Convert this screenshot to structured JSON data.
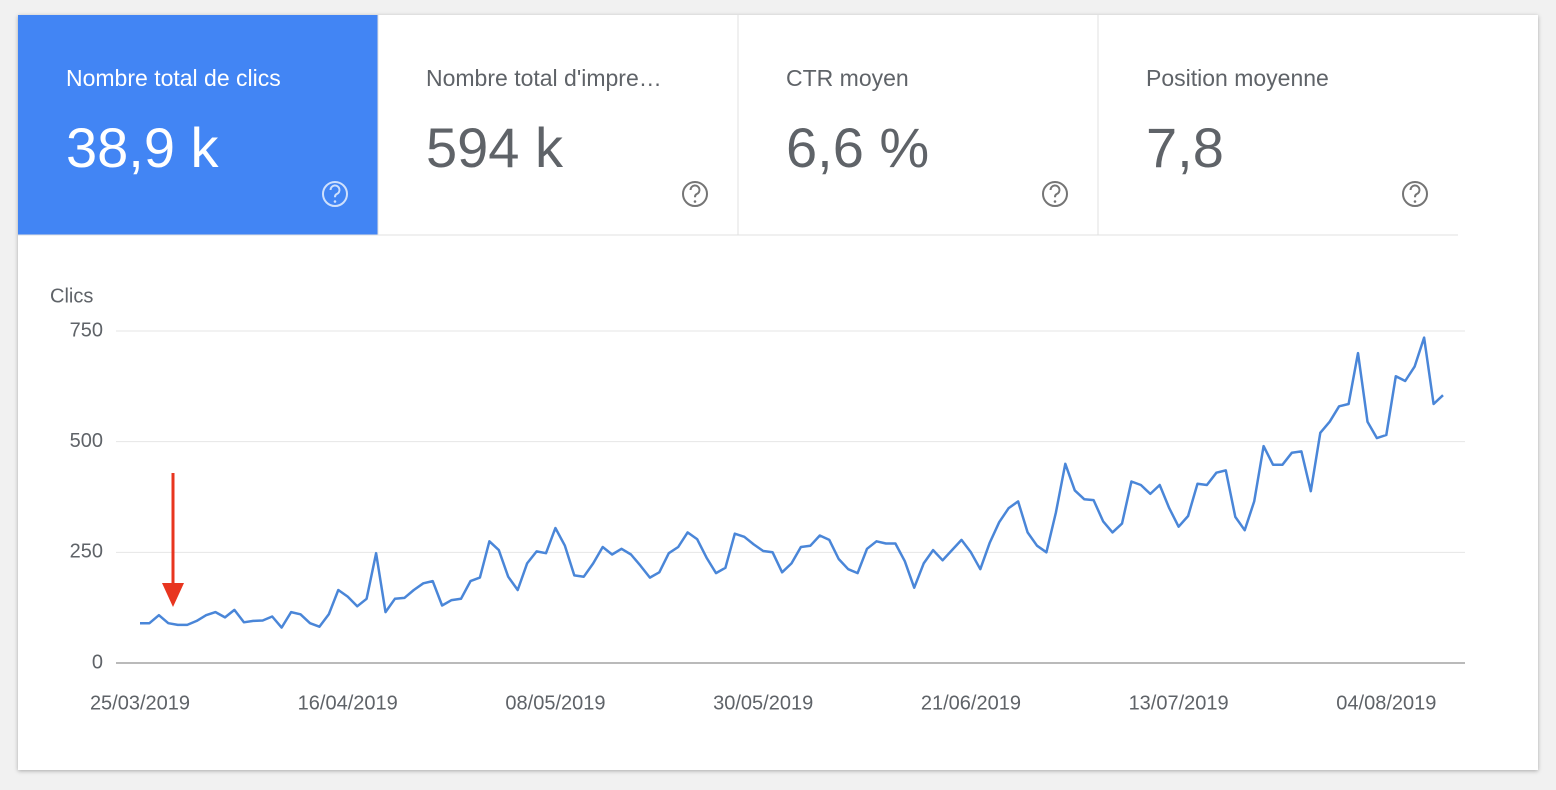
{
  "tiles": [
    {
      "label": "Nombre total de clics",
      "value": "38,9 k"
    },
    {
      "label": "Nombre total d'impre…",
      "value": "594 k"
    },
    {
      "label": "CTR moyen",
      "value": "6,6 %"
    },
    {
      "label": "Position moyenne",
      "value": "7,8"
    }
  ],
  "chart_data": {
    "type": "line",
    "y_label": "Clics",
    "categories": [
      "25/03/2019",
      null,
      null,
      null,
      null,
      null,
      null,
      null,
      null,
      null,
      null,
      null,
      null,
      null,
      null,
      null,
      null,
      null,
      null,
      null,
      null,
      null,
      "16/04/2019",
      null,
      null,
      null,
      null,
      null,
      null,
      null,
      null,
      null,
      null,
      null,
      null,
      null,
      null,
      null,
      null,
      null,
      null,
      null,
      null,
      null,
      "08/05/2019",
      null,
      null,
      null,
      null,
      null,
      null,
      null,
      null,
      null,
      null,
      null,
      null,
      null,
      null,
      null,
      null,
      null,
      null,
      null,
      null,
      null,
      "30/05/2019",
      null,
      null,
      null,
      null,
      null,
      null,
      null,
      null,
      null,
      null,
      null,
      null,
      null,
      null,
      null,
      null,
      null,
      null,
      null,
      null,
      null,
      "21/06/2019",
      null,
      null,
      null,
      null,
      null,
      null,
      null,
      null,
      null,
      null,
      null,
      null,
      null,
      null,
      null,
      null,
      null,
      null,
      null,
      null,
      null,
      "13/07/2019",
      null,
      null,
      null,
      null,
      null,
      null,
      null,
      null,
      null,
      null,
      null,
      null,
      null,
      null,
      null,
      null,
      null,
      null,
      null,
      null,
      null,
      "04/08/2019",
      null,
      null,
      null,
      null,
      null,
      null
    ],
    "series": [
      {
        "name": "Clics",
        "color": "#4a86d8",
        "values": [
          90,
          90,
          108,
          90,
          86,
          86,
          95,
          108,
          115,
          103,
          120,
          92,
          95,
          96,
          105,
          80,
          115,
          110,
          90,
          82,
          110,
          165,
          150,
          128,
          145,
          248,
          115,
          145,
          147,
          165,
          180,
          185,
          130,
          142,
          145,
          185,
          193,
          275,
          255,
          195,
          165,
          225,
          252,
          248,
          305,
          265,
          198,
          195,
          225,
          262,
          245,
          258,
          245,
          220,
          193,
          205,
          248,
          262,
          295,
          280,
          238,
          203,
          215,
          292,
          285,
          268,
          253,
          250,
          205,
          225,
          262,
          265,
          288,
          278,
          235,
          212,
          203,
          258,
          275,
          270,
          270,
          230,
          170,
          225,
          255,
          232,
          255,
          278,
          250,
          212,
          272,
          318,
          350,
          365,
          295,
          265,
          250,
          340,
          450,
          390,
          370,
          368,
          320,
          295,
          315,
          410,
          402,
          382,
          402,
          350,
          308,
          332,
          405,
          402,
          430,
          435,
          330,
          300,
          365,
          490,
          448,
          448,
          475,
          478,
          388,
          520,
          545,
          580,
          585,
          700,
          545,
          508,
          515,
          648,
          637,
          670,
          735,
          585,
          605
        ]
      }
    ],
    "ylim": [
      0,
      750
    ],
    "yticks": [
      0,
      250,
      500,
      750
    ],
    "grid": true
  }
}
